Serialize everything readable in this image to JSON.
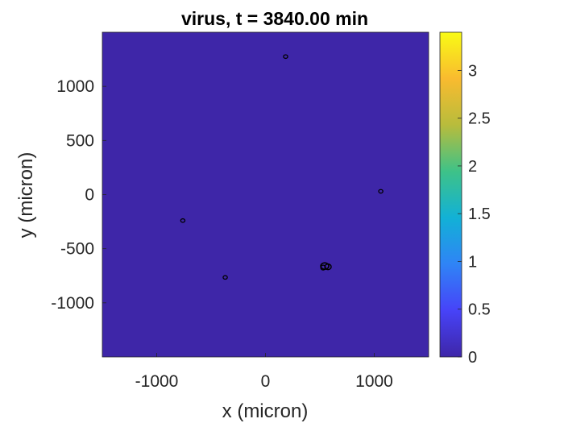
{
  "chart_data": {
    "type": "heatmap",
    "title": "virus, t = 3840.00 min",
    "xlabel": "x (micron)",
    "ylabel": "y (micron)",
    "xlim": [
      -1500,
      1500
    ],
    "ylim": [
      -1500,
      1500
    ],
    "xticks": [
      -1000,
      0,
      1000
    ],
    "xtick_labels": [
      "-1000",
      "0",
      "1000"
    ],
    "yticks": [
      1000,
      500,
      0,
      -500,
      -1000
    ],
    "ytick_labels": [
      "1000",
      "500",
      "0",
      "-500",
      "-1000"
    ],
    "field_value": 0,
    "field_color": "#3e26a8",
    "grid": false,
    "colorbar": {
      "range": [
        0,
        3.4
      ],
      "ticks": [
        0,
        0.5,
        1,
        1.5,
        2,
        2.5,
        3
      ],
      "tick_labels": [
        "0",
        "0.5",
        "1",
        "1.5",
        "2",
        "2.5",
        "3"
      ],
      "colormap": "parula",
      "colormap_stops": [
        "#3e26a8",
        "#4743f8",
        "#2f84f6",
        "#12b1d6",
        "#3ec288",
        "#b8bc3c",
        "#f9bb2f",
        "#f9fb15"
      ]
    },
    "contours": [
      {
        "x": 185,
        "y": 1275,
        "size": "small"
      },
      {
        "x": 1060,
        "y": 30,
        "size": "small"
      },
      {
        "x": -760,
        "y": -240,
        "size": "small"
      },
      {
        "x": -370,
        "y": -765,
        "size": "small"
      },
      {
        "x": 545,
        "y": -660,
        "size": "large"
      }
    ]
  }
}
